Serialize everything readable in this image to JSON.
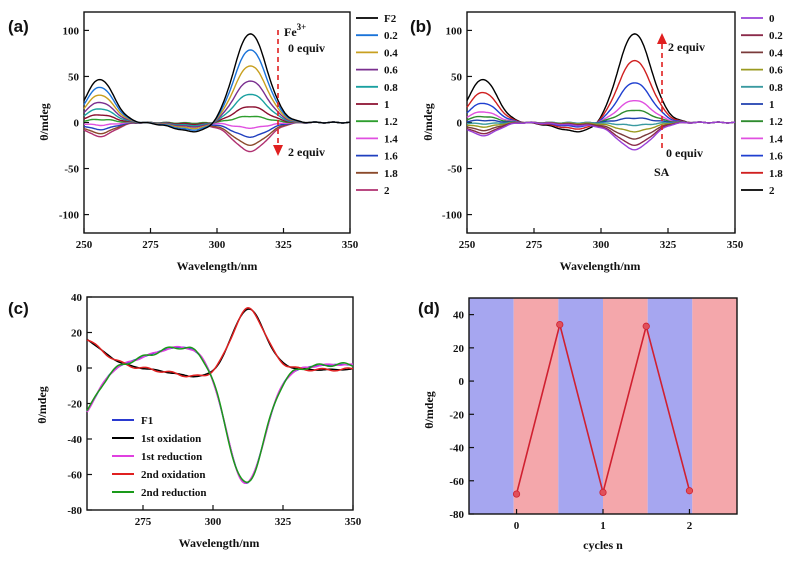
{
  "panels": {
    "a": {
      "letter": "(a)",
      "chart_data": {
        "type": "line",
        "xlabel": "Wavelength/nm",
        "ylabel": "θ/mdeg",
        "xlim": [
          250,
          350
        ],
        "ylim": [
          -120,
          120
        ],
        "xticks": [
          "250",
          "275",
          "300",
          "325",
          "350"
        ],
        "yticks": [
          "100",
          "50",
          "0",
          "-50",
          "-100"
        ],
        "legend": {
          "placement": "right-outside",
          "entries": [
            "F2",
            "0.2",
            "0.4",
            "0.6",
            "0.8",
            "1",
            "1.2",
            "1.4",
            "1.6",
            "1.8",
            "2"
          ]
        },
        "series_colors": [
          "#000000",
          "#1a73d9",
          "#c8a020",
          "#7a2f8f",
          "#1aa0a0",
          "#8b0f2f",
          "#2e9e2e",
          "#e050e0",
          "#1f3fbf",
          "#8b4a2b",
          "#b03070"
        ],
        "series_amplitudes": [
          1.0,
          0.82,
          0.64,
          0.47,
          0.32,
          0.18,
          0.07,
          -0.06,
          -0.16,
          -0.25,
          -0.32
        ],
        "annotations": {
          "ion_label": "Fe",
          "ion_charge": "3+",
          "start_label": "0 equiv",
          "end_label": "2 equiv"
        }
      }
    },
    "b": {
      "letter": "(b)",
      "chart_data": {
        "type": "line",
        "xlabel": "Wavelength/nm",
        "ylabel": "θ/mdeg",
        "xlim": [
          250,
          350
        ],
        "ylim": [
          -120,
          120
        ],
        "xticks": [
          "250",
          "275",
          "300",
          "325",
          "350"
        ],
        "yticks": [
          "100",
          "50",
          "0",
          "-50",
          "-100"
        ],
        "legend": {
          "placement": "right-outside",
          "entries": [
            "0",
            "0.2",
            "0.4",
            "0.6",
            "0.8",
            "1",
            "1.2",
            "1.4",
            "1.6",
            "1.8",
            "2"
          ]
        },
        "series_colors": [
          "#9a40d8",
          "#8b2a4a",
          "#7a3a3a",
          "#9a9a20",
          "#3a9aa0",
          "#1f3faf",
          "#2e8b2e",
          "#e050e0",
          "#1f3fd0",
          "#d02020",
          "#000000"
        ],
        "series_amplitudes": [
          -0.3,
          -0.25,
          -0.18,
          -0.1,
          -0.03,
          0.05,
          0.14,
          0.25,
          0.45,
          0.7,
          1.0
        ],
        "annotations": {
          "start_label": "0 equiv",
          "end_label": "2 equiv",
          "reagent_label": "SA"
        }
      }
    },
    "c": {
      "letter": "(c)",
      "chart_data": {
        "type": "line",
        "xlabel": "Wavelength/nm",
        "ylabel": "θ/mdeg",
        "xlim": [
          255,
          350
        ],
        "ylim": [
          -80,
          40
        ],
        "xticks": [
          "275",
          "300",
          "325",
          "350"
        ],
        "yticks": [
          "40",
          "20",
          "0",
          "-20",
          "-40",
          "-60",
          "-80"
        ],
        "legend": {
          "placement": "bottom-left",
          "entries": [
            "F1",
            "1st oxidation",
            "1st reduction",
            "2nd oxidation",
            "2nd reduction"
          ]
        },
        "series_colors": [
          "#2a3ad0",
          "#000000",
          "#e040e0",
          "#e02020",
          "#1a9a1a"
        ],
        "series_state": [
          "reduced",
          "oxidized",
          "reduced",
          "oxidized",
          "reduced"
        ]
      }
    },
    "d": {
      "letter": "(d)",
      "chart_data": {
        "type": "line",
        "xlabel": "cycles n",
        "ylabel": "θ/mdeg",
        "xlim": [
          -0.55,
          2.55
        ],
        "ylim": [
          -80,
          50
        ],
        "xticks": [
          "0",
          "1",
          "2"
        ],
        "yticks": [
          "40",
          "20",
          "0",
          "-20",
          "-40",
          "-60",
          "-80"
        ],
        "background_bands": [
          "#a6a6f0",
          "#f4a7ab",
          "#a6a6f0",
          "#f4a7ab",
          "#a6a6f0",
          "#f4a7ab"
        ],
        "line_color": "#d02030",
        "marker_color": "#e0505a",
        "x": [
          0,
          0.5,
          1,
          1.5,
          2
        ],
        "y": [
          -68,
          34,
          -67,
          33,
          -66
        ]
      }
    }
  }
}
